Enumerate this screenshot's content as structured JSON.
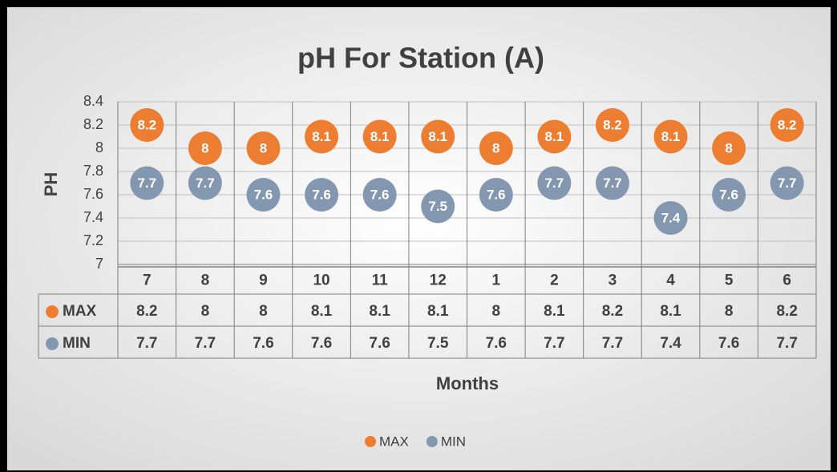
{
  "chart_data": {
    "type": "dot",
    "title": "pH For Station (A)",
    "x_label": "Months",
    "y_label": "PH",
    "categories": [
      "7",
      "8",
      "9",
      "10",
      "11",
      "12",
      "1",
      "2",
      "3",
      "4",
      "5",
      "6"
    ],
    "series": [
      {
        "name": "MAX",
        "color": "#ed7d31",
        "values": [
          8.2,
          8,
          8,
          8.1,
          8.1,
          8.1,
          8,
          8.1,
          8.2,
          8.1,
          8,
          8.2
        ]
      },
      {
        "name": "MIN",
        "color": "#8497b0",
        "values": [
          7.7,
          7.7,
          7.6,
          7.6,
          7.6,
          7.5,
          7.6,
          7.7,
          7.7,
          7.4,
          7.6,
          7.7
        ]
      }
    ],
    "ylim": [
      7,
      8.4
    ],
    "yticks": [
      7,
      7.2,
      7.4,
      7.6,
      7.8,
      8,
      8.2,
      8.4
    ],
    "grid": true,
    "legend": "bottom",
    "data_table": true
  }
}
